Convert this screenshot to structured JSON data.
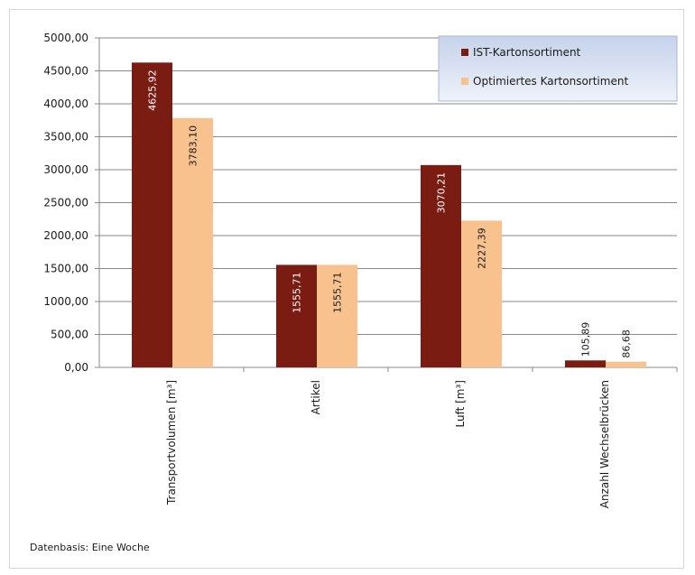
{
  "chart_data": {
    "type": "bar",
    "title": "",
    "xlabel": "",
    "ylabel": "",
    "ylim": [
      0,
      5000
    ],
    "yticks": [
      0,
      500,
      1000,
      1500,
      2000,
      2500,
      3000,
      3500,
      4000,
      4500,
      5000
    ],
    "ytick_labels": [
      "0,00",
      "500,00",
      "1000,00",
      "1500,00",
      "2000,00",
      "2500,00",
      "3000,00",
      "3500,00",
      "4000,00",
      "4500,00",
      "5000,00"
    ],
    "grid": true,
    "legend_position": "top-right",
    "categories": [
      "Transportvolumen [m³]",
      "Artikel",
      "Luft  [m³]",
      "Anzahl Wechselbrücken"
    ],
    "series": [
      {
        "name": "IST-Kartonsortiment",
        "color": "#7a1c12",
        "values": [
          4625.92,
          1555.71,
          3070.21,
          105.89
        ],
        "value_labels": [
          "4625,92",
          "1555,71",
          "3070,21",
          "105,89"
        ]
      },
      {
        "name": "Optimiertes Kartonsortiment",
        "color": "#f8c28e",
        "values": [
          3783.1,
          1555.71,
          2227.39,
          86.68
        ],
        "value_labels": [
          "3783,10",
          "1555,71",
          "2227,39",
          "86,68"
        ]
      }
    ]
  },
  "footnote": "Datenbasis: Eine Woche"
}
